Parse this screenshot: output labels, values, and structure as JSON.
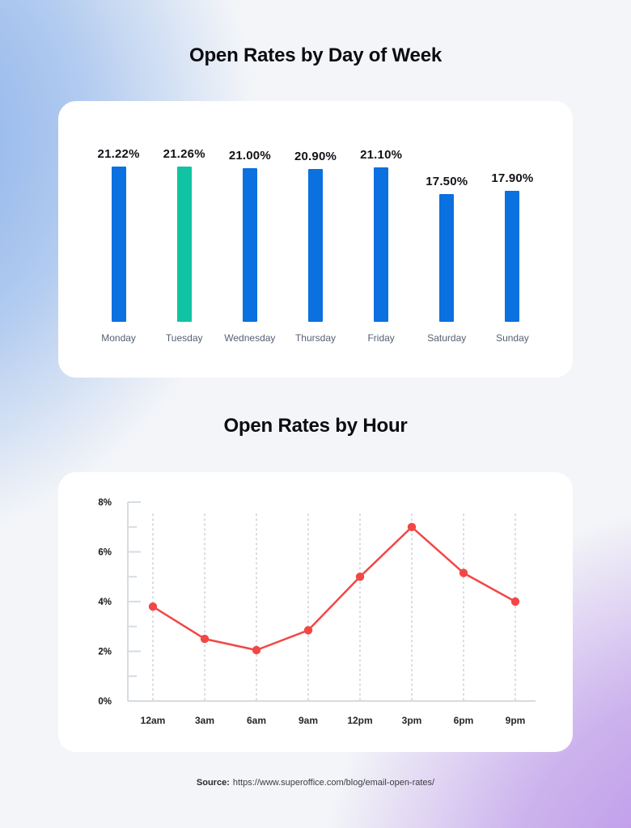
{
  "chart_data": [
    {
      "type": "bar",
      "title": "Open Rates by Day of Week",
      "categories": [
        "Monday",
        "Tuesday",
        "Wednesday",
        "Thursday",
        "Friday",
        "Saturday",
        "Sunday"
      ],
      "values": [
        21.22,
        21.26,
        21.0,
        20.9,
        21.1,
        17.5,
        17.9
      ],
      "value_labels": [
        "21.22%",
        "21.26%",
        "21.00%",
        "20.90%",
        "21.10%",
        "17.50%",
        "17.90%"
      ],
      "ylim": [
        0,
        21.26
      ],
      "grid": false,
      "legend": false,
      "value_labels_shown": true,
      "bar_color_default": "#0b70e0",
      "bar_color_highlight": "#10c3a3",
      "highlight_index": 1
    },
    {
      "type": "line",
      "title": "Open Rates by Hour",
      "x": [
        "12am",
        "3am",
        "6am",
        "9am",
        "12pm",
        "3pm",
        "6pm",
        "9pm"
      ],
      "values": [
        3.8,
        2.5,
        2.05,
        2.85,
        5.0,
        7.0,
        5.15,
        4.0
      ],
      "ylim": [
        0,
        8
      ],
      "ytick_labels": [
        "0%",
        "2%",
        "4%",
        "6%",
        "8%"
      ],
      "yticks_minor_step": 1,
      "grid": "vertical-dotted",
      "legend": false,
      "line_color": "#f24747",
      "marker": "circle"
    }
  ],
  "source": {
    "label": "Source:",
    "url": "https://www.superoffice.com/blog/email-open-rates/"
  },
  "colors": {
    "card_bg": "#ffffff",
    "bg_base": "#f3f5f8",
    "bg_accent_top_left": "#7ca8e9",
    "bg_accent_bottom_right": "#b286e6",
    "bar_blue": "#0b70e0",
    "bar_teal": "#10c3a3",
    "line_red": "#f24747",
    "axis_gray": "#d7dce0",
    "gridline_gray": "#c9cdd3",
    "day_label": "#566073",
    "hour_label": "#26262c",
    "ytick_label": "#17171c",
    "title_color": "#0c0c11"
  }
}
